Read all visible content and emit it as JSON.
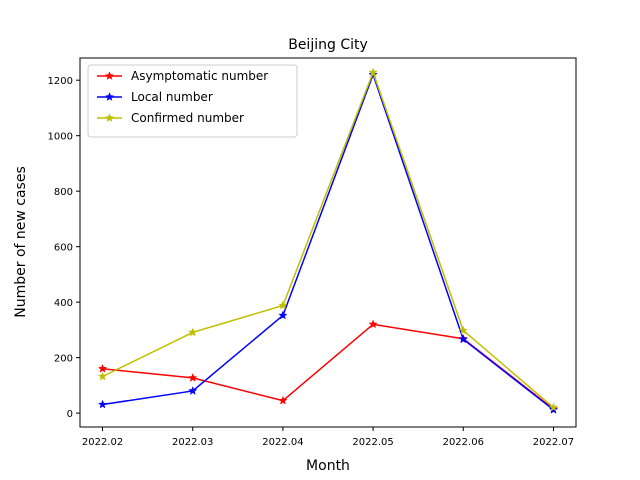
{
  "chart_data": {
    "type": "line",
    "title": "Beijing City",
    "xlabel": "Month",
    "ylabel": "Number of new cases",
    "categories": [
      "2022.02",
      "2022.03",
      "2022.04",
      "2022.05",
      "2022.06",
      "2022.07"
    ],
    "ylim": [
      -50,
      1280
    ],
    "yticks": [
      0,
      200,
      400,
      600,
      800,
      1000,
      1200
    ],
    "grid": false,
    "legend_position": "top-left",
    "series": [
      {
        "name": "Asymptomatic number",
        "color": "#ff0000",
        "marker": "star",
        "values": [
          160,
          127,
          45,
          320,
          268,
          15
        ]
      },
      {
        "name": "Local number",
        "color": "#0000ff",
        "marker": "star",
        "values": [
          31,
          80,
          352,
          1220,
          266,
          12
        ]
      },
      {
        "name": "Confirmed number",
        "color": "#bfbf00",
        "marker": "star",
        "values": [
          132,
          291,
          388,
          1228,
          298,
          20
        ]
      }
    ]
  }
}
